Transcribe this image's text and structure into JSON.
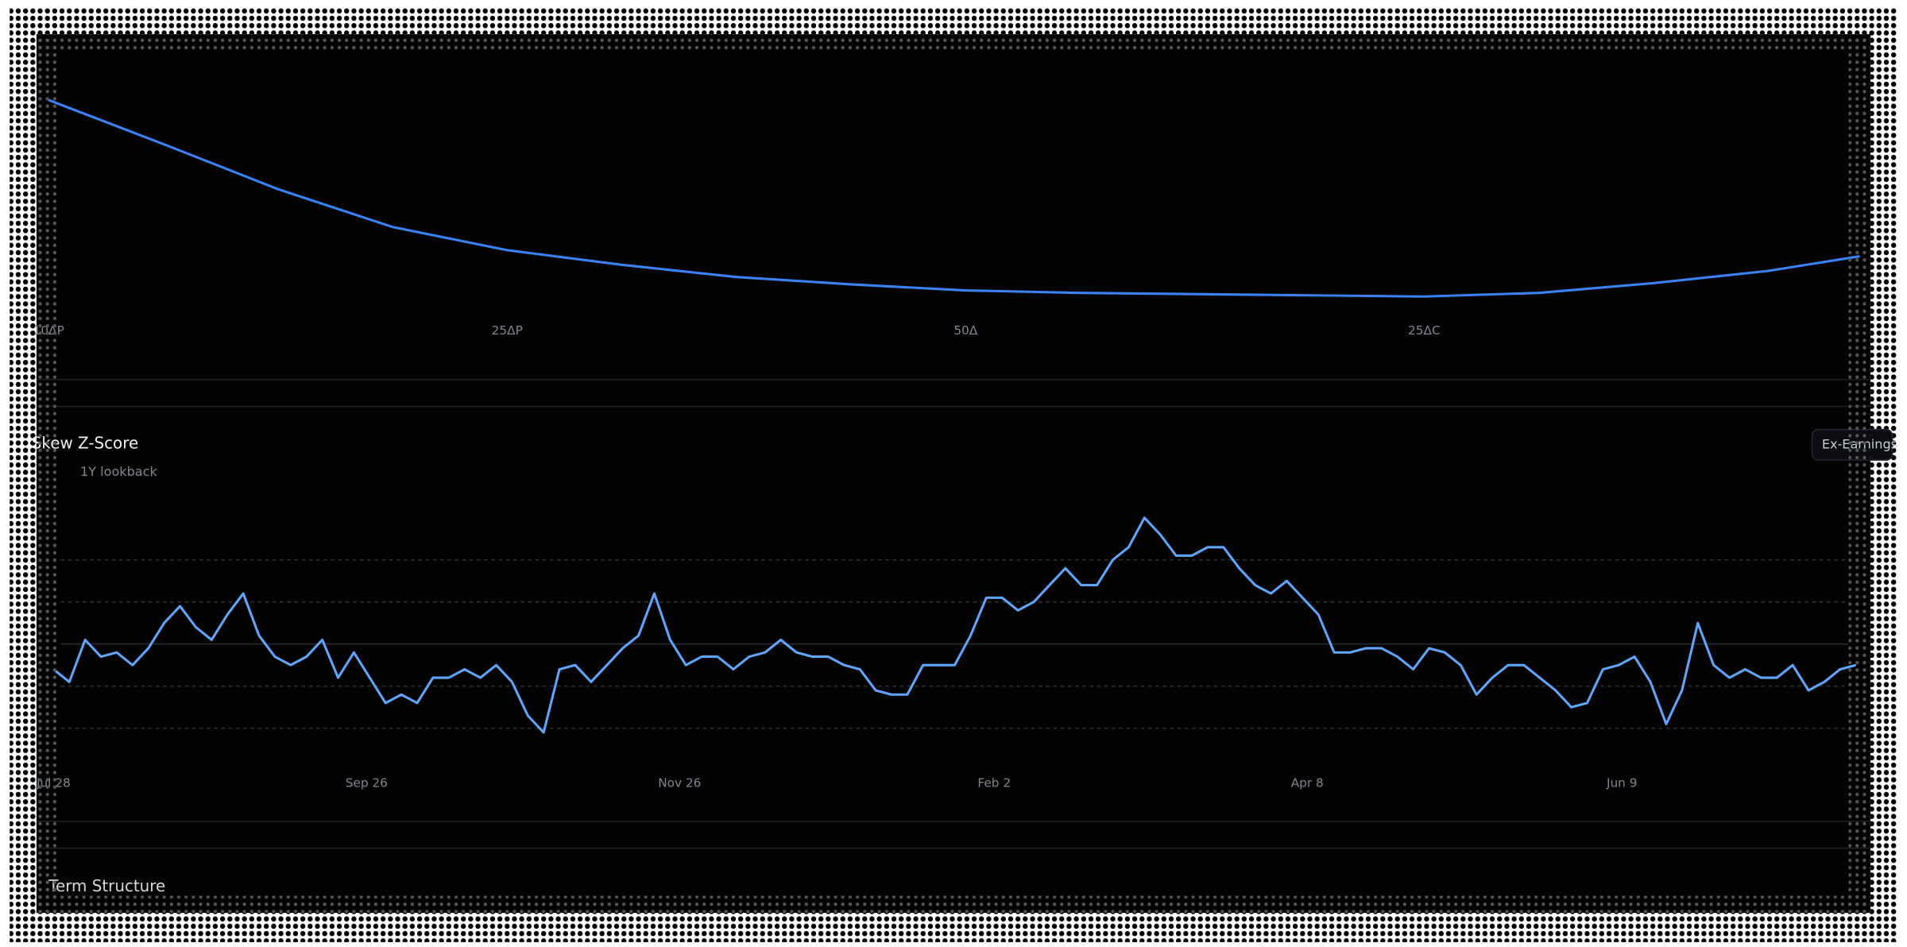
{
  "chart_data": [
    {
      "type": "line",
      "color": "#3b82f6",
      "x": [
        0,
        0.25,
        0.5,
        0.75,
        1,
        1.25,
        1.5,
        1.75,
        2,
        2.25,
        2.5,
        2.75,
        3,
        3.25,
        3.5,
        3.75,
        3.95
      ],
      "values": [
        89,
        71,
        52.5,
        37,
        27.5,
        21.5,
        16.5,
        13.5,
        11,
        10,
        9.5,
        9,
        8.5,
        10,
        14,
        19,
        25
      ],
      "xlim": [
        0,
        4
      ],
      "ylim": [
        0,
        100
      ],
      "xticks": [
        {
          "value": 0,
          "label": "10ΔP"
        },
        {
          "value": 1,
          "label": "25ΔP"
        },
        {
          "value": 2,
          "label": "50Δ"
        },
        {
          "value": 3,
          "label": "25ΔC"
        }
      ]
    },
    {
      "type": "line",
      "title": "Skew Z-Score",
      "subtitle": "1Y lookback",
      "color": "#60a5fa",
      "values": [
        -0.6,
        -0.9,
        0.1,
        -0.3,
        -0.2,
        -0.5,
        -0.1,
        0.5,
        0.9,
        0.4,
        0.1,
        0.7,
        1.2,
        0.2,
        -0.3,
        -0.5,
        -0.3,
        0.1,
        -0.8,
        -0.2,
        -0.8,
        -1.4,
        -1.2,
        -1.4,
        -0.8,
        -0.8,
        -0.6,
        -0.8,
        -0.5,
        -0.9,
        -1.7,
        -2.1,
        -0.6,
        -0.5,
        -0.9,
        -0.5,
        -0.1,
        0.2,
        1.2,
        0.1,
        -0.5,
        -0.3,
        -0.3,
        -0.6,
        -0.3,
        -0.2,
        0.1,
        -0.2,
        -0.3,
        -0.3,
        -0.5,
        -0.6,
        -1.1,
        -1.2,
        -1.2,
        -0.5,
        -0.5,
        -0.5,
        0.2,
        1.1,
        1.1,
        0.8,
        1.0,
        1.4,
        1.8,
        1.4,
        1.4,
        2.0,
        2.3,
        3.0,
        2.6,
        2.1,
        2.1,
        2.3,
        2.3,
        1.8,
        1.4,
        1.2,
        1.5,
        1.1,
        0.7,
        -0.2,
        -0.2,
        -0.1,
        -0.1,
        -0.3,
        -0.6,
        -0.1,
        -0.2,
        -0.5,
        -1.2,
        -0.8,
        -0.5,
        -0.5,
        -0.8,
        -1.1,
        -1.5,
        -1.4,
        -0.6,
        -0.5,
        -0.3,
        -0.9,
        -1.9,
        -1.1,
        0.5,
        -0.5,
        -0.8,
        -0.6,
        -0.8,
        -0.8,
        -0.5,
        -1.1,
        -0.9,
        -0.6,
        -0.5
      ],
      "xlim": [
        0,
        114
      ],
      "ylim": [
        -2.5,
        3.5
      ],
      "yticks": [
        -2,
        -1,
        0,
        1,
        2
      ],
      "grid": true,
      "xticks": [
        {
          "value": 0,
          "label": "Jul 28"
        },
        {
          "value": 19.8,
          "label": "Sep 26"
        },
        {
          "value": 39.6,
          "label": "Nov 26"
        },
        {
          "value": 59.5,
          "label": "Feb 2"
        },
        {
          "value": 79.3,
          "label": "Apr 8"
        },
        {
          "value": 99.2,
          "label": "Jun 9"
        }
      ]
    }
  ],
  "ui": {
    "filter_button": "Ex-Earnings",
    "next_section": "Term Structure"
  }
}
